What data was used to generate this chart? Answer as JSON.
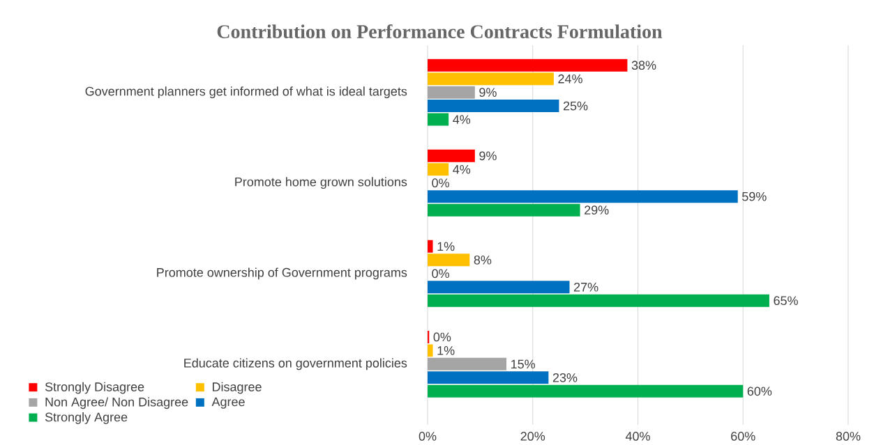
{
  "chart_data": {
    "type": "bar",
    "orientation": "horizontal",
    "title": "Contribution on Performance Contracts Formulation",
    "categories": [
      "Government planners get informed of what is ideal targets",
      "Promote home grown solutions",
      "Promote ownership of Government programs",
      "Educate citizens on government policies"
    ],
    "series": [
      {
        "name": "Strongly Disagree",
        "color": "#ff0000",
        "values": [
          38,
          9,
          1,
          0.3
        ],
        "value_labels": [
          "38%",
          "9%",
          "1%",
          "0%"
        ]
      },
      {
        "name": "Disagree",
        "color": "#ffc000",
        "values": [
          24,
          4,
          8,
          1
        ],
        "value_labels": [
          "24%",
          "4%",
          "8%",
          "1%"
        ]
      },
      {
        "name": "Non Agree/ Non Disagree",
        "color": "#a5a5a5",
        "values": [
          9,
          0,
          0,
          15
        ],
        "value_labels": [
          "9%",
          "0%",
          "0%",
          "15%"
        ]
      },
      {
        "name": "Agree",
        "color": "#0070c0",
        "values": [
          25,
          59,
          27,
          23
        ],
        "value_labels": [
          "25%",
          "59%",
          "27%",
          "23%"
        ]
      },
      {
        "name": "Strongly Agree",
        "color": "#00b050",
        "values": [
          4,
          29,
          65,
          60
        ],
        "value_labels": [
          "4%",
          "29%",
          "65%",
          "60%"
        ]
      }
    ],
    "xlim": [
      0,
      80
    ],
    "xticks": [
      {
        "value": 0,
        "label": "0%"
      },
      {
        "value": 20,
        "label": "20%"
      },
      {
        "value": 40,
        "label": "40%"
      },
      {
        "value": 60,
        "label": "60%"
      },
      {
        "value": 80,
        "label": "80%"
      }
    ],
    "grid": "x",
    "legend": "bottom left"
  }
}
